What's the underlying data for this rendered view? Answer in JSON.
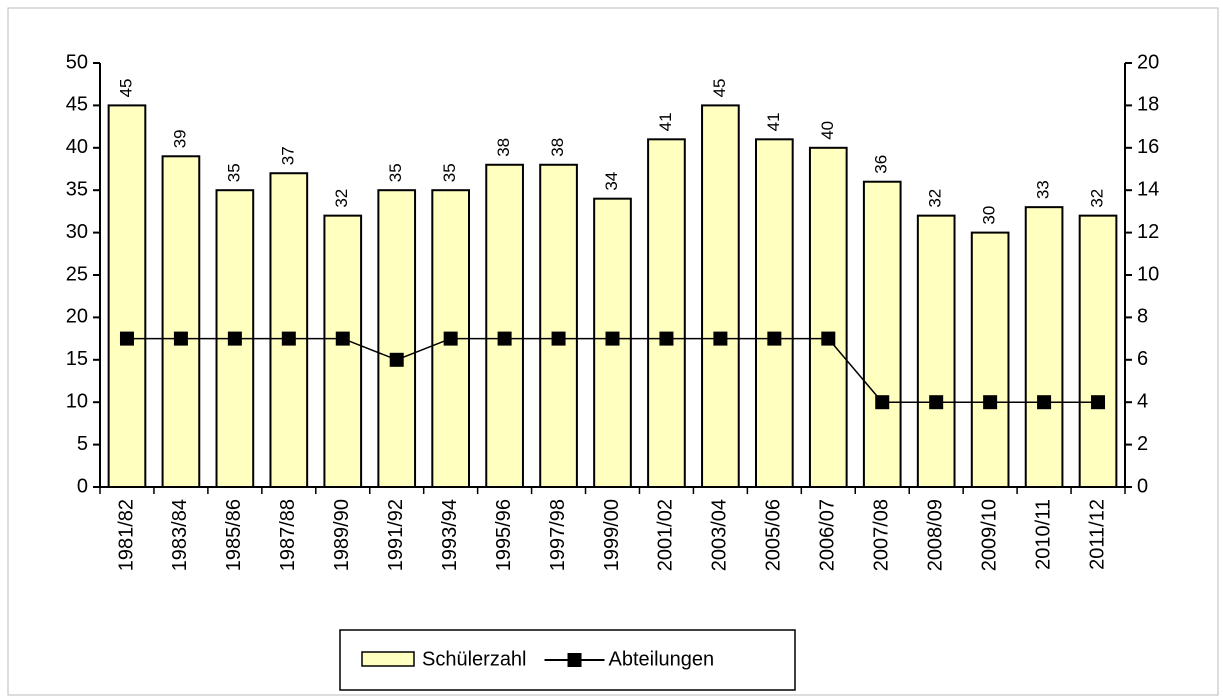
{
  "chart_data": {
    "type": "bar",
    "categories": [
      "1981/82",
      "1983/84",
      "1985/86",
      "1987/88",
      "1989/90",
      "1991/92",
      "1993/94",
      "1995/96",
      "1997/98",
      "1999/00",
      "2001/02",
      "2003/04",
      "2005/06",
      "2006/07",
      "2007/08",
      "2008/09",
      "2009/10",
      "2010/11",
      "2011/12"
    ],
    "series": [
      {
        "name": "Schülerzahl",
        "type": "bar",
        "color": "#ffffc0",
        "values": [
          45,
          39,
          35,
          37,
          32,
          35,
          35,
          38,
          38,
          34,
          41,
          45,
          41,
          40,
          36,
          32,
          30,
          33,
          32
        ]
      },
      {
        "name": "Abteilungen",
        "type": "line",
        "axis": "y2",
        "color": "#000000",
        "values": [
          7,
          7,
          7,
          7,
          7,
          6,
          7,
          7,
          7,
          7,
          7,
          7,
          7,
          7,
          4,
          4,
          4,
          4,
          4
        ]
      }
    ],
    "ylim": [
      0,
      50
    ],
    "yticks": [
      0,
      5,
      10,
      15,
      20,
      25,
      30,
      35,
      40,
      45,
      50
    ],
    "y2lim": [
      0,
      20
    ],
    "y2ticks": [
      0,
      2,
      4,
      6,
      8,
      10,
      12,
      14,
      16,
      18,
      20
    ],
    "grid": false,
    "legend": "bottom"
  }
}
